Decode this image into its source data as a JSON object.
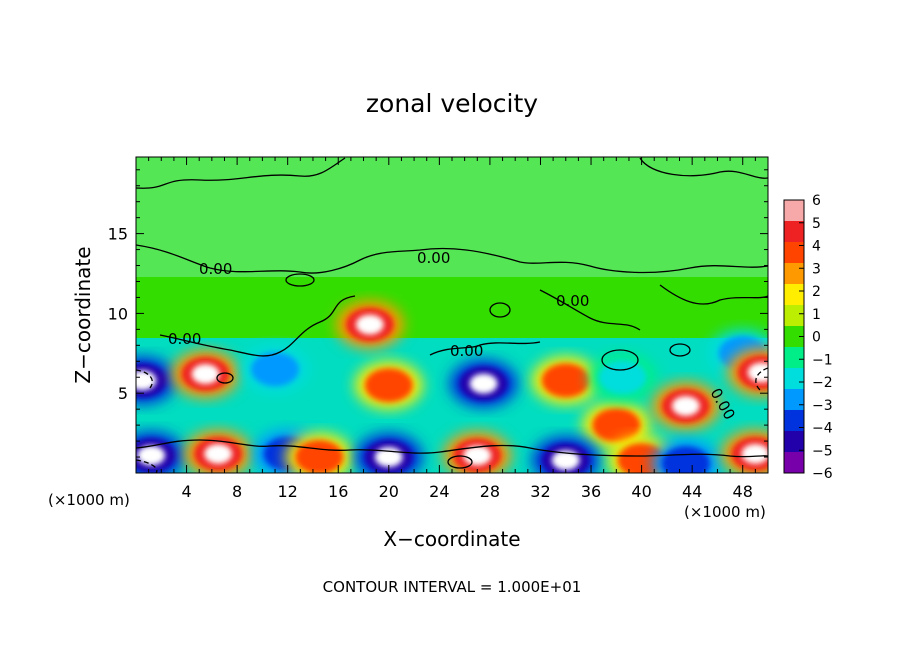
{
  "chart_data": {
    "type": "heatmap",
    "title": "zonal velocity",
    "xlabel": "X−coordinate",
    "ylabel": "Z−coordinate",
    "x_unit_left": "(×1000 m)",
    "x_unit_right": "(×1000 m)",
    "footer": "CONTOUR INTERVAL = 1.000E+01",
    "xlim": [
      0,
      50
    ],
    "ylim": [
      0,
      19.8
    ],
    "x_ticks": [
      4,
      8,
      12,
      16,
      20,
      24,
      28,
      32,
      36,
      40,
      44,
      48
    ],
    "x_tick_labels": [
      "4",
      "8",
      "12",
      "16",
      "20",
      "24",
      "28",
      "32",
      "36",
      "40",
      "44",
      "48"
    ],
    "y_ticks": [
      5,
      10,
      15
    ],
    "y_tick_labels": [
      "5",
      "10",
      "15"
    ],
    "contour_labels": [
      "0.00",
      "0.00",
      "0.00",
      "0.00",
      "0.00",
      "0.00"
    ],
    "colorbar": {
      "ticks": [
        6,
        5,
        4,
        3,
        2,
        1,
        0,
        -1,
        -2,
        -3,
        -4,
        -5,
        -6
      ],
      "tick_labels": [
        "6",
        "5",
        "4",
        "3",
        "2",
        "1",
        "0",
        "−1",
        "−2",
        "−3",
        "−4",
        "−5",
        "−6"
      ],
      "colors": [
        "#f7a8a8",
        "#ee2222",
        "#ff4400",
        "#ff9900",
        "#ffee00",
        "#bbee00",
        "#33dd00",
        "#00ee88",
        "#00dddd",
        "#0099ff",
        "#0033dd",
        "#2200aa",
        "#7700aa"
      ]
    },
    "features": [
      {
        "x": 0.5,
        "z": 5.8,
        "u": -6
      },
      {
        "x": 5.5,
        "z": 6.2,
        "u": 6
      },
      {
        "x": 11,
        "z": 6.5,
        "u": -4
      },
      {
        "x": 18.5,
        "z": 9.3,
        "u": 6
      },
      {
        "x": 20,
        "z": 5.5,
        "u": 5
      },
      {
        "x": 27.5,
        "z": 5.6,
        "u": -6
      },
      {
        "x": 34,
        "z": 5.8,
        "u": 5
      },
      {
        "x": 38,
        "z": 3,
        "u": 5
      },
      {
        "x": 38.5,
        "z": 6,
        "u": -3
      },
      {
        "x": 43.5,
        "z": 4.2,
        "u": 6
      },
      {
        "x": 48,
        "z": 7.5,
        "u": -4
      },
      {
        "x": 49.5,
        "z": 6.3,
        "u": 6
      },
      {
        "x": 1.2,
        "z": 1.1,
        "u": -6
      },
      {
        "x": 6.5,
        "z": 1.2,
        "u": 6
      },
      {
        "x": 12,
        "z": 1.2,
        "u": -5
      },
      {
        "x": 14.5,
        "z": 1,
        "u": 5
      },
      {
        "x": 20,
        "z": 1,
        "u": -6
      },
      {
        "x": 27,
        "z": 1.1,
        "u": 6
      },
      {
        "x": 34,
        "z": 0.8,
        "u": -6
      },
      {
        "x": 40,
        "z": 0.8,
        "u": 5
      },
      {
        "x": 43.5,
        "z": 0.6,
        "u": -5
      },
      {
        "x": 49,
        "z": 1.2,
        "u": 6
      }
    ]
  }
}
